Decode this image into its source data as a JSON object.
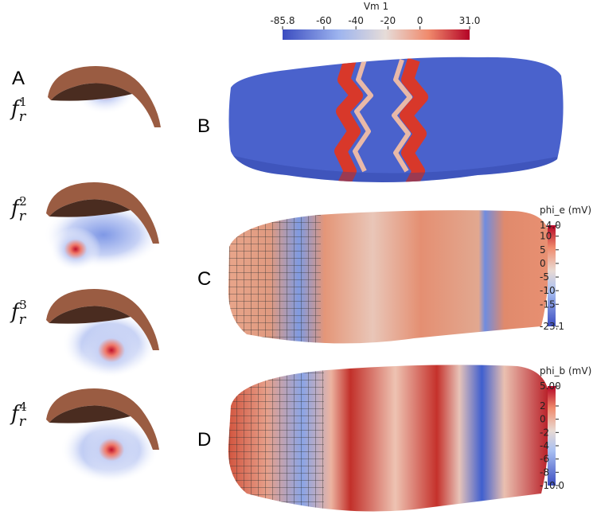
{
  "panels": [
    {
      "label": "A"
    },
    {
      "label": "B"
    },
    {
      "label": "C"
    },
    {
      "label": "D"
    }
  ],
  "source_labels": [
    {
      "base": "f",
      "sub": "r",
      "sup": "1"
    },
    {
      "base": "f",
      "sub": "r",
      "sup": "2"
    },
    {
      "base": "f",
      "sub": "r",
      "sup": "3"
    },
    {
      "base": "f",
      "sub": "r",
      "sup": "4"
    }
  ],
  "colorbars": [
    {
      "title": "Vm 1",
      "orientation": "horizontal",
      "range": [
        -85.8,
        31
      ],
      "ticks": [
        -85.8,
        -60,
        -40,
        -20,
        0,
        {
          "value": 31,
          "label": "31.0"
        }
      ]
    },
    {
      "title": "phi_e (mV)",
      "orientation": "vertical",
      "range": [
        -23.1,
        14
      ],
      "ticks": [
        {
          "value": 14,
          "label": "14.0"
        },
        10,
        5,
        0,
        -5,
        -10,
        -15,
        -23.1
      ]
    },
    {
      "title": "phi_b (mV)",
      "orientation": "vertical",
      "range": [
        -10,
        5
      ],
      "ticks": [
        {
          "value": 5,
          "label": "5.00"
        },
        2,
        0,
        -2,
        -4,
        -6,
        -8,
        {
          "value": -10,
          "label": "-10.0"
        }
      ]
    }
  ]
}
